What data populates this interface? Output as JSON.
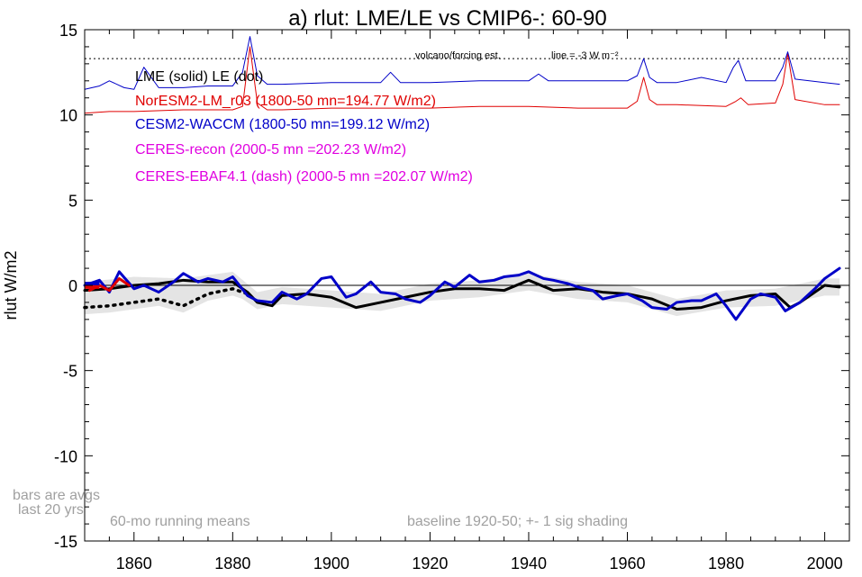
{
  "chart_data": {
    "type": "line",
    "title": "a) rlut: LME/LE vs CMIP6-: 60-90",
    "ylabel": "rlut W/m2",
    "xlim": [
      1850,
      2005
    ],
    "ylim": [
      -15,
      15
    ],
    "x_ticks": [
      1860,
      1880,
      1900,
      1920,
      1940,
      1960,
      1980,
      2000
    ],
    "y_ticks": [
      15,
      10,
      5,
      0,
      -5,
      -10,
      -15
    ],
    "y_tick_labels": [
      "15",
      "10",
      "5",
      "0",
      "-5",
      "-10",
      "-15"
    ],
    "reference_line": {
      "label": "volcano/forcing est.",
      "note": "line = -3 W m⁻²",
      "y": 13.3
    },
    "legend": [
      {
        "text": "LME (solid)   LE (dot)",
        "color": "#000000"
      },
      {
        "text": "NorESM2-LM_r03 (1800-50 mn=194.77 W/m2)",
        "color": "#e00000"
      },
      {
        "text": "CESM2-WACCM (1800-50 mn=199.12 W/m2)",
        "color": "#0000c8"
      },
      {
        "text": "CERES-recon (2000-5 mn =202.23 W/m2)",
        "color": "#e000e0"
      },
      {
        "text": "CERES-EBAF4.1 (dash) (2000-5 mn =202.07 W/m2)",
        "color": "#e000e0"
      }
    ],
    "notes": {
      "bars": "bars are avgs\nlast 20 yrs",
      "running": "60-mo running means",
      "baseline": "baseline 1920-50; +- 1 sig shading"
    },
    "series": [
      {
        "name": "LME (solid)",
        "color": "#000000",
        "style": "solid",
        "x": [
          1850,
          1855,
          1860,
          1865,
          1870,
          1875,
          1880,
          1883,
          1885,
          1888,
          1890,
          1895,
          1900,
          1905,
          1910,
          1915,
          1920,
          1925,
          1930,
          1935,
          1940,
          1945,
          1950,
          1955,
          1960,
          1965,
          1970,
          1975,
          1980,
          1985,
          1990,
          1993,
          1995,
          2000,
          2003
        ],
        "y": [
          -0.3,
          -0.2,
          0.0,
          0.1,
          0.3,
          0.2,
          0.2,
          -0.4,
          -1.0,
          -1.2,
          -0.6,
          -0.5,
          -0.7,
          -1.3,
          -1.0,
          -0.7,
          -0.4,
          -0.2,
          -0.2,
          -0.3,
          0.3,
          -0.3,
          -0.2,
          -0.4,
          -0.5,
          -0.8,
          -1.4,
          -1.3,
          -0.9,
          -0.6,
          -0.5,
          -1.3,
          -1.0,
          0.0,
          -0.1
        ]
      },
      {
        "name": "LE (dot)",
        "color": "#000000",
        "style": "dot",
        "x": [
          1850,
          1855,
          1860,
          1865,
          1870,
          1875,
          1880,
          1883
        ],
        "y": [
          -1.3,
          -1.2,
          -1.0,
          -0.8,
          -1.2,
          -0.5,
          -0.2,
          -0.5
        ]
      },
      {
        "name": "CESM2-WACCM",
        "color": "#0000c8",
        "style": "solid",
        "x": [
          1850,
          1853,
          1855,
          1857,
          1860,
          1862,
          1865,
          1868,
          1870,
          1873,
          1875,
          1878,
          1880,
          1883,
          1885,
          1888,
          1890,
          1893,
          1895,
          1898,
          1900,
          1903,
          1905,
          1908,
          1910,
          1913,
          1915,
          1918,
          1920,
          1923,
          1925,
          1928,
          1930,
          1933,
          1935,
          1938,
          1940,
          1943,
          1945,
          1948,
          1950,
          1953,
          1955,
          1958,
          1960,
          1963,
          1965,
          1968,
          1970,
          1973,
          1975,
          1978,
          1980,
          1982,
          1985,
          1987,
          1990,
          1992,
          1995,
          1998,
          2000,
          2003
        ],
        "y": [
          0.0,
          0.3,
          -0.4,
          0.8,
          -0.2,
          0.0,
          -0.4,
          0.2,
          0.7,
          0.2,
          0.4,
          0.2,
          0.5,
          -0.6,
          -0.9,
          -1.0,
          -0.4,
          -0.8,
          -0.5,
          0.4,
          0.5,
          -0.7,
          -0.5,
          0.2,
          -0.4,
          -0.5,
          -0.8,
          -1.0,
          -0.6,
          0.2,
          -0.1,
          0.6,
          0.2,
          0.3,
          0.5,
          0.6,
          0.8,
          0.4,
          0.3,
          0.1,
          -0.1,
          -0.3,
          -0.8,
          -0.6,
          -0.5,
          -0.9,
          -1.3,
          -1.4,
          -1.0,
          -0.9,
          -0.9,
          -0.5,
          -1.2,
          -2.0,
          -0.8,
          -0.5,
          -0.7,
          -1.5,
          -1.0,
          -0.2,
          0.4,
          1.0
        ]
      },
      {
        "name": "NorESM2-LM_r03",
        "color": "#e00000",
        "style": "solid",
        "x": [
          1851,
          1853,
          1855,
          1857,
          1859
        ],
        "y": [
          -0.3,
          0.0,
          -0.3,
          0.4,
          0.0
        ]
      },
      {
        "name": "NorESM2-LM forcing est",
        "color": "#e00000",
        "style": "thin",
        "x": [
          1850,
          1855,
          1860,
          1870,
          1880,
          1882,
          1883.5,
          1885,
          1887,
          1890,
          1900,
          1910,
          1920,
          1930,
          1940,
          1950,
          1960,
          1962,
          1963.3,
          1964.5,
          1966,
          1970,
          1980,
          1982,
          1983,
          1984.5,
          1990,
          1991.5,
          1992.5,
          1994,
          2000,
          2003
        ],
        "y": [
          10.1,
          10.2,
          10.2,
          10.3,
          10.3,
          10.5,
          14.0,
          10.7,
          10.3,
          10.3,
          10.4,
          10.4,
          10.4,
          10.5,
          10.5,
          10.4,
          10.4,
          10.8,
          12.2,
          10.9,
          10.6,
          10.6,
          10.5,
          10.8,
          11.0,
          10.6,
          10.7,
          11.8,
          13.6,
          10.9,
          10.6,
          10.6
        ]
      },
      {
        "name": "CESM2 forcing est",
        "color": "#0000c8",
        "style": "thin",
        "x": [
          1850,
          1853,
          1855,
          1858,
          1860,
          1862,
          1865,
          1870,
          1875,
          1880,
          1882,
          1883.5,
          1885,
          1887,
          1890,
          1900,
          1910,
          1912,
          1914,
          1920,
          1930,
          1940,
          1942,
          1944,
          1950,
          1960,
          1962,
          1963.3,
          1964.5,
          1966,
          1970,
          1975,
          1980,
          1981.5,
          1982.5,
          1984,
          1988,
          1990,
          1991.5,
          1992.5,
          1994,
          2000,
          2003
        ],
        "y": [
          11.5,
          11.7,
          12.0,
          11.6,
          11.5,
          12.8,
          11.6,
          11.6,
          11.7,
          11.7,
          12.5,
          14.6,
          12.3,
          11.8,
          11.8,
          11.9,
          11.9,
          12.5,
          11.9,
          11.9,
          12.0,
          12.0,
          12.4,
          12.0,
          12.0,
          12.0,
          12.3,
          13.3,
          12.2,
          11.9,
          11.9,
          12.2,
          11.9,
          12.8,
          13.2,
          12.0,
          12.0,
          12.0,
          12.8,
          13.7,
          12.1,
          11.9,
          11.8
        ]
      }
    ],
    "shading": {
      "name": "+- 1 sig",
      "color": "#d8d8d8",
      "x": [
        1850,
        1860,
        1870,
        1880,
        1885,
        1890,
        1900,
        1910,
        1920,
        1930,
        1940,
        1950,
        1960,
        1970,
        1980,
        1990,
        2000,
        2003
      ],
      "center": [
        -0.4,
        -0.2,
        -0.3,
        0.2,
        -0.9,
        -0.6,
        -0.8,
        -1.0,
        -0.4,
        -0.2,
        0.2,
        -0.3,
        -0.5,
        -1.3,
        -0.8,
        -0.7,
        -0.1,
        -0.1
      ],
      "spread": [
        0.6,
        0.7,
        0.7,
        0.6,
        0.5,
        0.5,
        0.5,
        0.5,
        0.5,
        0.5,
        0.5,
        0.5,
        0.5,
        0.5,
        0.5,
        0.5,
        0.5,
        0.5
      ]
    },
    "le_shading": {
      "x": [
        1850,
        1855,
        1860,
        1865,
        1870,
        1875,
        1880,
        1883
      ],
      "center": [
        -1.3,
        -1.2,
        -1.0,
        -0.8,
        -1.2,
        -0.5,
        -0.2,
        -0.5
      ],
      "spread": [
        0.4,
        0.4,
        0.4,
        0.4,
        0.4,
        0.4,
        0.4,
        0.4
      ]
    },
    "bars": [
      {
        "color": "#0000c8",
        "y": 0.1
      },
      {
        "color": "#e00000",
        "y": -0.1
      }
    ]
  }
}
